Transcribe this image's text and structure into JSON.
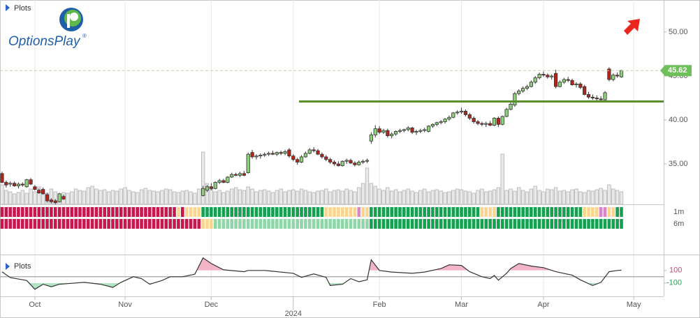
{
  "header": {
    "plots_label": "Plots",
    "logo_text": "OptionsPlay",
    "logo_mark": "®"
  },
  "chart_data": {
    "type": "candlestick",
    "xlim": [
      -0.5,
      161.3
    ],
    "xticks": [
      {
        "value": 8,
        "label": "Oct"
      },
      {
        "value": 30,
        "label": "Nov"
      },
      {
        "value": 51,
        "label": "Dec"
      },
      {
        "value": 92,
        "label": "Feb"
      },
      {
        "value": 112,
        "label": "Mar"
      },
      {
        "value": 132,
        "label": "Apr"
      },
      {
        "value": 154,
        "label": "May"
      }
    ],
    "year_ticks": [
      {
        "value": 71,
        "label": "2024"
      }
    ],
    "ylim": [
      30.4,
      53.65
    ],
    "yticks": [
      {
        "value": 35,
        "label": "35.00"
      },
      {
        "value": 40,
        "label": "40.00"
      },
      {
        "value": 45,
        "label": "45.00"
      },
      {
        "value": 50,
        "label": "50.00"
      }
    ],
    "grid": true,
    "colors": {
      "up": "#8fd07c",
      "down": "#b3261b"
    },
    "ohlc": [
      [
        33.9,
        34.1,
        32.8,
        32.9
      ],
      [
        32.9,
        33.1,
        32.3,
        32.6
      ],
      [
        32.7,
        33.0,
        32.4,
        32.8
      ],
      [
        32.8,
        33.0,
        32.4,
        32.5
      ],
      [
        32.5,
        32.9,
        32.2,
        32.7
      ],
      [
        32.7,
        32.9,
        32.4,
        32.6
      ],
      [
        32.4,
        33.3,
        32.3,
        33.2
      ],
      [
        33.2,
        33.4,
        32.6,
        32.7
      ],
      [
        32.4,
        32.6,
        32.0,
        32.1
      ],
      [
        32.0,
        32.2,
        31.6,
        31.7
      ],
      [
        32.1,
        32.3,
        31.5,
        31.6
      ],
      [
        31.5,
        31.7,
        30.6,
        30.8
      ],
      [
        30.9,
        31.1,
        30.5,
        30.7
      ],
      [
        30.8,
        31.0,
        30.4,
        30.6
      ],
      [
        30.7,
        31.7,
        30.6,
        31.6
      ],
      [
        31.3,
        31.5,
        30.9,
        31.0
      ],
      null,
      null,
      null,
      null,
      null,
      null,
      null,
      null,
      null,
      null,
      null,
      null,
      null,
      null,
      null,
      null,
      null,
      null,
      null,
      null,
      null,
      null,
      null,
      null,
      null,
      null,
      null,
      null,
      null,
      null,
      null,
      null,
      null,
      [
        31.4,
        32.5,
        31.3,
        32.2
      ],
      [
        32.0,
        32.6,
        31.8,
        32.4
      ],
      [
        32.4,
        32.8,
        32.0,
        32.2
      ],
      [
        32.2,
        33.0,
        32.1,
        32.9
      ],
      [
        32.9,
        33.3,
        32.7,
        33.1
      ],
      [
        33.1,
        33.3,
        32.8,
        32.9
      ],
      [
        32.9,
        33.6,
        32.8,
        33.5
      ],
      [
        33.5,
        34.0,
        33.4,
        33.8
      ],
      [
        33.8,
        34.0,
        33.6,
        33.7
      ],
      [
        33.7,
        34.1,
        33.5,
        33.9
      ],
      [
        33.9,
        34.2,
        33.6,
        33.7
      ],
      [
        34.0,
        36.3,
        33.9,
        36.1
      ],
      [
        36.3,
        36.6,
        35.6,
        35.8
      ],
      [
        35.8,
        36.1,
        35.5,
        35.9
      ],
      [
        35.9,
        36.2,
        35.6,
        36.0
      ],
      [
        36.0,
        36.3,
        35.8,
        36.1
      ],
      [
        36.1,
        36.4,
        35.9,
        36.2
      ],
      [
        36.2,
        36.5,
        36.0,
        36.1
      ],
      [
        36.1,
        36.4,
        35.9,
        36.3
      ],
      [
        36.3,
        36.5,
        36.0,
        36.2
      ],
      [
        36.2,
        36.6,
        36.0,
        36.4
      ],
      [
        36.6,
        36.8,
        35.7,
        35.9
      ],
      [
        35.9,
        36.1,
        35.3,
        35.5
      ],
      [
        35.5,
        35.7,
        34.9,
        35.2
      ],
      [
        35.2,
        36.0,
        35.1,
        35.8
      ],
      [
        35.8,
        36.4,
        35.7,
        36.2
      ],
      [
        36.2,
        36.8,
        36.1,
        36.6
      ],
      [
        36.6,
        36.9,
        36.3,
        36.5
      ],
      [
        36.5,
        36.7,
        36.0,
        36.1
      ],
      [
        36.1,
        36.3,
        35.6,
        35.8
      ],
      [
        35.8,
        36.0,
        35.3,
        35.5
      ],
      [
        35.5,
        35.7,
        35.0,
        35.2
      ],
      [
        35.2,
        35.4,
        34.8,
        35.0
      ],
      [
        35.0,
        35.3,
        34.7,
        34.8
      ],
      [
        34.8,
        35.4,
        34.7,
        35.3
      ],
      [
        35.3,
        35.6,
        35.0,
        35.4
      ],
      [
        35.4,
        35.6,
        35.0,
        35.1
      ],
      [
        35.1,
        35.3,
        34.7,
        34.9
      ],
      [
        34.9,
        35.4,
        34.8,
        35.2
      ],
      [
        35.2,
        35.5,
        35.0,
        35.3
      ],
      [
        35.3,
        35.6,
        35.1,
        35.4
      ],
      [
        37.6,
        38.6,
        37.3,
        38.3
      ],
      [
        38.3,
        39.4,
        38.0,
        39.0
      ],
      [
        39.0,
        39.3,
        38.4,
        38.6
      ],
      [
        38.6,
        39.0,
        38.4,
        38.8
      ],
      [
        38.8,
        39.0,
        38.0,
        38.2
      ],
      [
        38.2,
        38.6,
        37.9,
        38.4
      ],
      [
        38.4,
        38.8,
        38.2,
        38.7
      ],
      [
        38.7,
        39.0,
        38.5,
        38.8
      ],
      [
        38.8,
        39.0,
        38.6,
        38.9
      ],
      [
        38.9,
        39.3,
        38.7,
        39.1
      ],
      [
        39.1,
        39.2,
        38.4,
        38.6
      ],
      [
        38.6,
        38.9,
        38.3,
        38.7
      ],
      [
        38.7,
        39.0,
        38.5,
        38.8
      ],
      [
        38.8,
        39.1,
        38.6,
        38.9
      ],
      [
        38.7,
        39.4,
        38.6,
        39.3
      ],
      [
        39.3,
        39.6,
        39.1,
        39.5
      ],
      [
        39.5,
        39.8,
        39.3,
        39.7
      ],
      [
        39.7,
        40.0,
        39.5,
        39.8
      ],
      [
        39.8,
        40.2,
        39.6,
        40.1
      ],
      [
        40.1,
        40.5,
        39.9,
        40.3
      ],
      [
        40.3,
        40.9,
        40.2,
        40.8
      ],
      [
        40.8,
        41.1,
        40.6,
        40.9
      ],
      [
        40.9,
        41.4,
        40.7,
        41.0
      ],
      [
        41.0,
        41.2,
        40.4,
        40.6
      ],
      [
        40.6,
        40.8,
        40.0,
        40.2
      ],
      [
        40.2,
        40.4,
        39.6,
        39.8
      ],
      [
        39.8,
        40.0,
        39.4,
        39.6
      ],
      [
        39.6,
        39.8,
        39.3,
        39.5
      ],
      [
        39.5,
        39.8,
        39.2,
        39.6
      ],
      [
        39.6,
        39.9,
        39.3,
        39.4
      ],
      [
        39.4,
        40.3,
        39.3,
        40.2
      ],
      [
        40.2,
        40.4,
        39.2,
        39.5
      ],
      [
        39.5,
        40.5,
        39.4,
        40.4
      ],
      [
        40.4,
        41.4,
        40.3,
        41.2
      ],
      [
        41.2,
        42.0,
        41.1,
        41.8
      ],
      [
        41.7,
        43.2,
        41.5,
        43.0
      ],
      [
        43.0,
        43.5,
        42.8,
        43.3
      ],
      [
        43.3,
        43.8,
        43.1,
        43.6
      ],
      [
        43.6,
        44.0,
        43.4,
        43.8
      ],
      [
        43.8,
        44.5,
        43.7,
        44.3
      ],
      [
        44.3,
        45.0,
        44.1,
        44.8
      ],
      [
        44.8,
        45.4,
        44.6,
        45.2
      ],
      [
        45.2,
        45.5,
        44.9,
        45.1
      ],
      [
        45.1,
        45.3,
        44.7,
        44.9
      ],
      [
        44.9,
        45.2,
        44.6,
        45.0
      ],
      [
        45.3,
        45.7,
        43.6,
        43.8
      ],
      [
        43.8,
        44.5,
        43.7,
        44.3
      ],
      [
        44.3,
        44.8,
        44.1,
        44.6
      ],
      [
        44.6,
        44.9,
        44.3,
        44.5
      ],
      [
        44.5,
        44.7,
        43.9,
        44.0
      ],
      [
        44.0,
        44.3,
        43.7,
        44.1
      ],
      [
        44.1,
        44.3,
        43.5,
        43.7
      ],
      [
        43.8,
        44.0,
        42.8,
        42.9
      ],
      [
        42.9,
        43.2,
        42.4,
        42.6
      ],
      [
        42.6,
        42.9,
        42.3,
        42.5
      ],
      [
        42.5,
        42.8,
        42.2,
        42.4
      ],
      [
        42.4,
        42.7,
        42.1,
        42.3
      ],
      [
        42.3,
        43.3,
        42.2,
        43.1
      ],
      [
        45.8,
        46.0,
        44.4,
        44.6
      ],
      [
        44.6,
        45.3,
        44.4,
        45.1
      ],
      [
        45.1,
        45.4,
        44.8,
        45.0
      ],
      [
        44.9,
        45.7,
        44.8,
        45.62
      ]
    ],
    "last_price": 45.62,
    "support": 42.1,
    "volume": {
      "ylim": [
        0,
        80
      ],
      "color": "#e9e9e9",
      "values": [
        28,
        20,
        18,
        15,
        17,
        20,
        16,
        22,
        18,
        25,
        20,
        16,
        22,
        18,
        15,
        17,
        16,
        18,
        22,
        20,
        19,
        24,
        26,
        22,
        20,
        21,
        18,
        20,
        19,
        22,
        24,
        20,
        18,
        17,
        21,
        23,
        20,
        19,
        18,
        20,
        22,
        21,
        18,
        17,
        19,
        20,
        18,
        16,
        22,
        75,
        30,
        22,
        18,
        20,
        17,
        19,
        22,
        24,
        21,
        20,
        25,
        22,
        18,
        20,
        21,
        19,
        17,
        20,
        22,
        18,
        20,
        21,
        19,
        22,
        20,
        18,
        17,
        19,
        20,
        22,
        18,
        20,
        21,
        19,
        22,
        20,
        18,
        24,
        30,
        52,
        30,
        26,
        22,
        20,
        24,
        19,
        21,
        18,
        20,
        22,
        19,
        17,
        20,
        22,
        18,
        20,
        21,
        19,
        17,
        18,
        20,
        22,
        21,
        19,
        18,
        16,
        20,
        22,
        18,
        19,
        21,
        24,
        72,
        20,
        22,
        19,
        24,
        20,
        18,
        22,
        26,
        20,
        18,
        22,
        21,
        24,
        19,
        20,
        18,
        21,
        22,
        18,
        17,
        20,
        19,
        21,
        23,
        20,
        28,
        22,
        20,
        18
      ]
    },
    "signals": [
      {
        "name": "1m",
        "runs": [
          {
            "color": "#c8174e",
            "days": 43
          },
          {
            "color": "#fbd58e",
            "days": 1
          },
          {
            "color": "#c8174e",
            "days": 1
          },
          {
            "color": "#fbd58e",
            "days": 4
          },
          {
            "color": "#14a150",
            "days": 30
          },
          {
            "color": "#fbd58e",
            "days": 8
          },
          {
            "color": "#d983c9",
            "days": 1
          },
          {
            "color": "#fbd58e",
            "days": 2
          },
          {
            "color": "#14a150",
            "days": 27
          },
          {
            "color": "#fbd58e",
            "days": 4
          },
          {
            "color": "#14a150",
            "days": 21
          },
          {
            "color": "#fbd58e",
            "days": 4
          },
          {
            "color": "#d983c9",
            "days": 2
          },
          {
            "color": "#fbd58e",
            "days": 2
          },
          {
            "color": "#14a150",
            "days": 2
          }
        ]
      },
      {
        "name": "6m",
        "runs": [
          {
            "color": "#c8174e",
            "days": 49
          },
          {
            "color": "#fbd58e",
            "days": 3
          },
          {
            "color": "#8fd6a8",
            "days": 38
          },
          {
            "color": "#14a150",
            "days": 62
          }
        ]
      }
    ],
    "oscillator": {
      "title": "Plots",
      "ylim": [
        -280,
        320
      ],
      "yticks": [
        100,
        -100
      ],
      "upper_color": "#f2b5c8",
      "lower_color": "#b3e3c4",
      "x": [
        0,
        2,
        6,
        8,
        10,
        12,
        14,
        16,
        20,
        24,
        27,
        29,
        32,
        34,
        36,
        39,
        41,
        44,
        47,
        49,
        51,
        54,
        59,
        60,
        64,
        71,
        73,
        76,
        79,
        80,
        83,
        85,
        87,
        89,
        90,
        92,
        95,
        100,
        103,
        107,
        109,
        112,
        114,
        117,
        119,
        120,
        121,
        123,
        124,
        126,
        129,
        132,
        135,
        139,
        141,
        144,
        146,
        148,
        150,
        151
      ],
      "values": [
        78,
        -15,
        -60,
        -200,
        -120,
        -160,
        -120,
        -110,
        -90,
        -120,
        -170,
        -90,
        0,
        -30,
        -120,
        -60,
        0,
        0,
        40,
        300,
        210,
        110,
        80,
        100,
        100,
        55,
        -10,
        45,
        -10,
        -140,
        -120,
        -30,
        -80,
        -50,
        270,
        100,
        75,
        55,
        75,
        130,
        190,
        180,
        80,
        0,
        -30,
        20,
        -55,
        55,
        130,
        210,
        170,
        145,
        80,
        25,
        -50,
        -140,
        -90,
        80,
        100,
        105
      ]
    }
  }
}
